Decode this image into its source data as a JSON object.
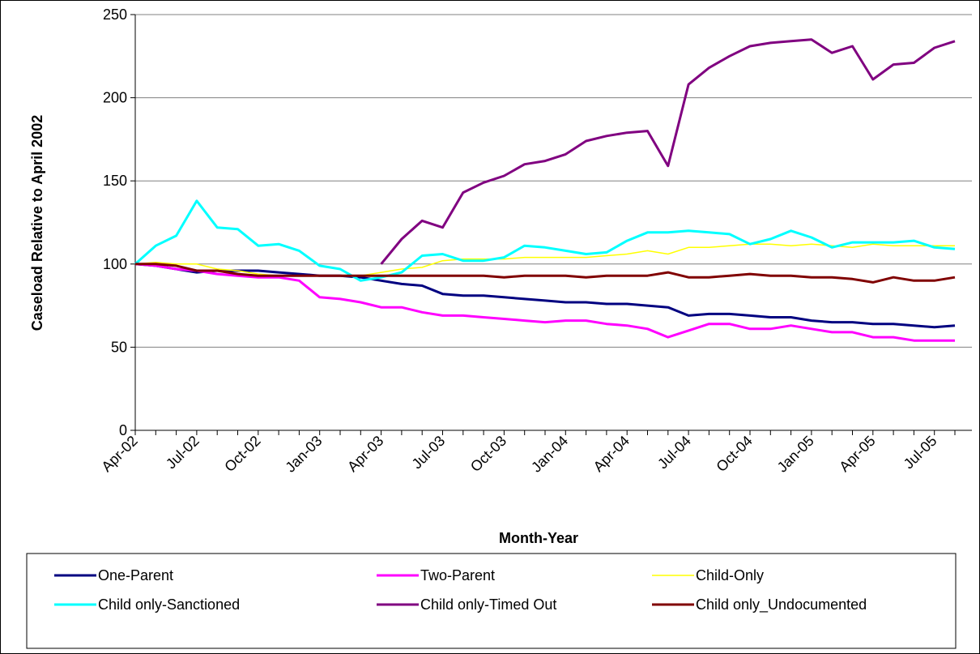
{
  "chart_data": {
    "type": "line",
    "x_label": "Month-Year",
    "y_label": "Caseload Relative to April 2002",
    "categories": [
      "Apr-02",
      null,
      null,
      "Jul-02",
      null,
      null,
      "Oct-02",
      null,
      null,
      "Jan-03",
      null,
      null,
      "Apr-03",
      null,
      null,
      "Jul-03",
      null,
      null,
      "Oct-03",
      null,
      null,
      "Jan-04",
      null,
      null,
      "Apr-04",
      null,
      null,
      "Jul-04",
      null,
      null,
      "Oct-04",
      null,
      null,
      "Jan-05",
      null,
      null,
      "Apr-05",
      null,
      null,
      "Jul-05",
      null
    ],
    "series": [
      {
        "name": "One-Parent",
        "color": "#000080",
        "values": [
          100,
          99,
          97,
          95,
          96,
          96,
          96,
          95,
          94,
          93,
          93,
          92,
          90,
          88,
          87,
          82,
          81,
          81,
          80,
          79,
          78,
          77,
          77,
          76,
          76,
          75,
          74,
          69,
          70,
          70,
          69,
          68,
          68,
          66,
          65,
          65,
          64,
          64,
          63,
          62,
          63
        ]
      },
      {
        "name": "Two-Parent",
        "color": "#ff00ff",
        "values": [
          100,
          99,
          97,
          96,
          94,
          93,
          92,
          92,
          90,
          80,
          79,
          77,
          74,
          74,
          71,
          69,
          69,
          68,
          67,
          66,
          65,
          66,
          66,
          64,
          63,
          61,
          56,
          60,
          64,
          64,
          61,
          61,
          63,
          61,
          59,
          59,
          56,
          56,
          54,
          54,
          54
        ]
      },
      {
        "name": "Child-Only",
        "color": "#ffff00",
        "values": [
          100,
          101,
          100,
          100,
          97,
          96,
          94,
          93,
          93,
          93,
          93,
          93,
          95,
          97,
          98,
          102,
          103,
          103,
          103,
          104,
          104,
          104,
          104,
          105,
          106,
          108,
          106,
          110,
          110,
          111,
          112,
          112,
          111,
          112,
          111,
          110,
          112,
          111,
          111,
          111,
          111
        ]
      },
      {
        "name": "Child only-Sanctioned",
        "color": "#00ffff",
        "values": [
          100,
          111,
          117,
          138,
          122,
          121,
          111,
          112,
          108,
          99,
          97,
          90,
          92,
          95,
          105,
          106,
          102,
          102,
          104,
          111,
          110,
          108,
          106,
          107,
          114,
          119,
          119,
          120,
          119,
          118,
          112,
          115,
          120,
          116,
          110,
          113,
          113,
          113,
          114,
          110,
          109
        ]
      },
      {
        "name": "Child only-Timed Out",
        "color": "#800080",
        "values": [
          null,
          null,
          null,
          null,
          null,
          null,
          null,
          null,
          null,
          null,
          null,
          null,
          100,
          115,
          126,
          122,
          143,
          149,
          153,
          160,
          162,
          166,
          174,
          177,
          179,
          180,
          159,
          208,
          218,
          225,
          231,
          233,
          234,
          235,
          227,
          231,
          211,
          220,
          221,
          230,
          234
        ]
      },
      {
        "name": "Child only_Undocumented",
        "color": "#800000",
        "values": [
          100,
          100,
          99,
          96,
          96,
          94,
          93,
          93,
          93,
          93,
          93,
          93,
          93,
          93,
          93,
          93,
          93,
          93,
          92,
          93,
          93,
          93,
          92,
          93,
          93,
          93,
          95,
          92,
          92,
          93,
          94,
          93,
          93,
          92,
          92,
          91,
          89,
          92,
          90,
          90,
          92
        ]
      }
    ],
    "ylim": [
      0,
      250
    ],
    "yticks": [
      0,
      50,
      100,
      150,
      200,
      250
    ],
    "grid": true,
    "legend": "bottom"
  }
}
